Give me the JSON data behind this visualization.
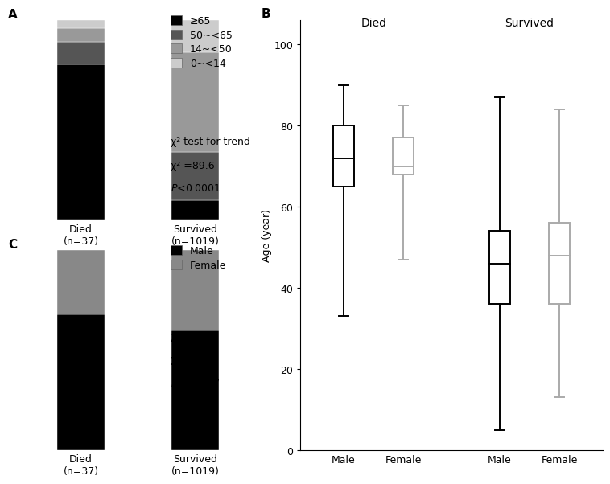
{
  "panel_A": {
    "label": "A",
    "bar_keys": [
      "Died\n(n=37)",
      "Survived\n(n=1019)"
    ],
    "bars": {
      "Died": {
        "ge65": 0.78,
        "50_65": 0.11,
        "14_50": 0.07,
        "0_14": 0.04
      },
      "Survived": {
        "ge65": 0.1,
        "50_65": 0.24,
        "14_50": 0.5,
        "0_14": 0.16
      }
    },
    "colors": {
      "ge65": "#000000",
      "50_65": "#555555",
      "14_50": "#999999",
      "0_14": "#cccccc"
    },
    "legend_labels": [
      "≥65",
      "50~<65",
      "14~<50",
      "0~<14"
    ],
    "xticklabels": [
      "Died\n(n=37)",
      "Survived\n(n=1019)"
    ]
  },
  "panel_B": {
    "label": "B",
    "died_male": {
      "min": 33,
      "q1": 65,
      "median": 72,
      "q3": 80,
      "max": 90
    },
    "died_female": {
      "min": 47,
      "q1": 68,
      "median": 70,
      "q3": 77,
      "max": 85
    },
    "surv_male": {
      "min": 5,
      "q1": 36,
      "median": 46,
      "q3": 54,
      "max": 87
    },
    "surv_female": {
      "min": 13,
      "q1": 36,
      "median": 48,
      "q3": 56,
      "max": 84
    },
    "ylabel": "Age (year)",
    "yticks": [
      0,
      20,
      40,
      60,
      80,
      100
    ],
    "group_labels": [
      "Died",
      "Survived"
    ],
    "box_labels": [
      "Male",
      "Female"
    ],
    "died_color": "#000000",
    "surv_color": "#aaaaaa"
  },
  "panel_C": {
    "label": "C",
    "bar_keys": [
      "Died",
      "Survived"
    ],
    "bars": {
      "Died": {
        "male": 0.68,
        "female": 0.32
      },
      "Survived": {
        "male": 0.6,
        "female": 0.4
      }
    },
    "colors": {
      "male": "#000000",
      "female": "#888888"
    },
    "legend_labels": [
      "Male",
      "Female"
    ],
    "xticklabels": [
      "Died\n(n=37)",
      "Survived\n(n=1019)"
    ]
  },
  "bg_color": "#ffffff",
  "font_size": 9,
  "label_fontsize": 11
}
